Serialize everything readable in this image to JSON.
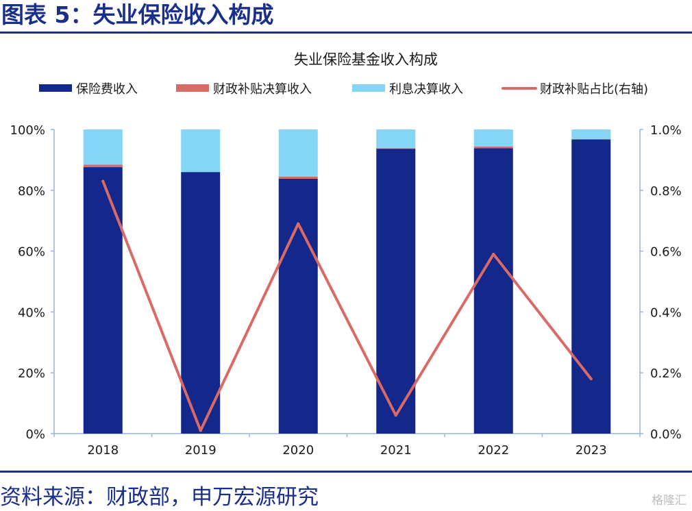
{
  "figure_title": "图表 5：失业保险收入构成",
  "source_text": "资料来源：财政部，申万宏源研究",
  "watermark": "格隆汇",
  "colors": {
    "premium": "#13288a",
    "subsidy": "#d96a66",
    "interest": "#85d5f7",
    "line": "#d96a66",
    "axis": "#9ab4d6",
    "brand": "#1a2f8a"
  },
  "chart_data": {
    "type": "bar",
    "stacked": true,
    "title": "失业保险基金收入构成",
    "categories": [
      "2018",
      "2019",
      "2020",
      "2021",
      "2022",
      "2023"
    ],
    "series": [
      {
        "name": "保险费收入",
        "axis": "left",
        "kind": "bar",
        "values": [
          87.6,
          86.0,
          83.8,
          93.7,
          93.8,
          96.7
        ]
      },
      {
        "name": "财政补贴决算收入",
        "axis": "left",
        "kind": "bar",
        "values": [
          0.8,
          0.0,
          0.7,
          0.1,
          0.6,
          0.2
        ]
      },
      {
        "name": "利息决算收入",
        "axis": "left",
        "kind": "bar",
        "values": [
          11.6,
          14.0,
          15.5,
          6.2,
          5.6,
          3.1
        ]
      },
      {
        "name": "财政补贴占比(右轴)",
        "axis": "right",
        "kind": "line",
        "values": [
          0.83,
          0.01,
          0.69,
          0.06,
          0.59,
          0.18
        ]
      }
    ],
    "y_left": {
      "min": 0,
      "max": 100,
      "ticks": [
        "0%",
        "20%",
        "40%",
        "60%",
        "80%",
        "100%"
      ]
    },
    "y_right": {
      "min": 0,
      "max": 1.0,
      "ticks": [
        "0.0%",
        "0.2%",
        "0.4%",
        "0.6%",
        "0.8%",
        "1.0%"
      ]
    },
    "legend_position": "top",
    "grid": false
  }
}
